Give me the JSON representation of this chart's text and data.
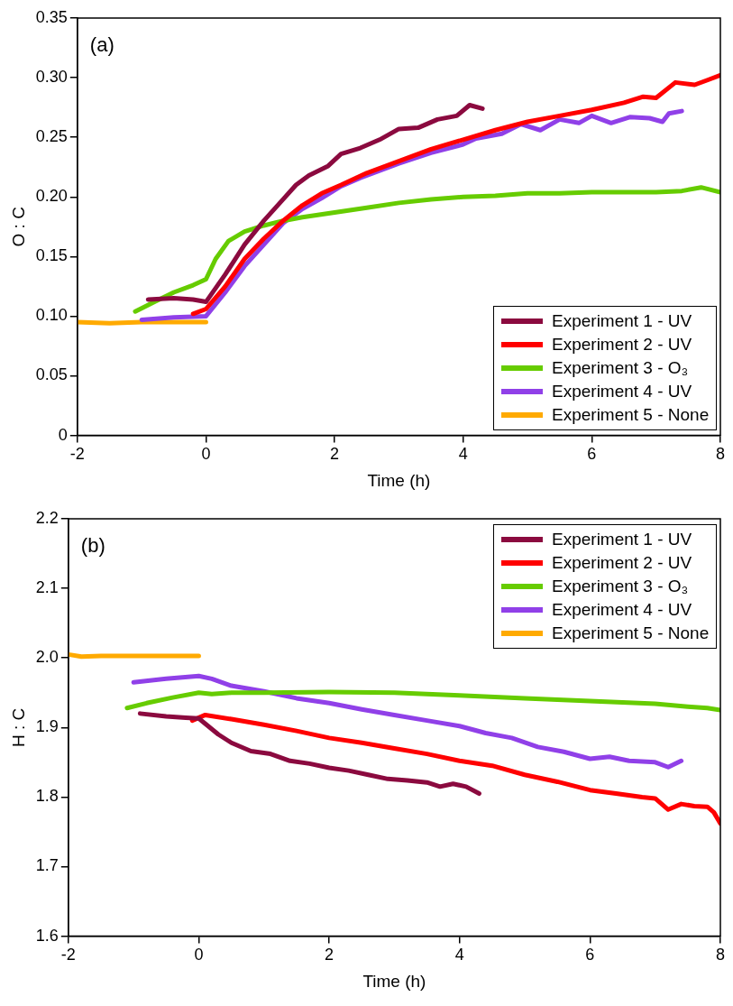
{
  "chart_data": [
    {
      "type": "line",
      "xlabel": "Time (h)",
      "ylabel": "O : C",
      "annotations": [
        "(a)"
      ],
      "legend": "bottom right",
      "grid": false,
      "marker": "none",
      "line_style": "solid",
      "xlim": [
        -2,
        8
      ],
      "xticks": [
        -2,
        0,
        2,
        4,
        6,
        8
      ],
      "ylim": [
        0,
        0.35
      ],
      "yticks": [
        0,
        0.05,
        {
          "value": 0.1,
          "label": "0.10"
        },
        0.15,
        {
          "value": 0.2,
          "label": "0.20"
        },
        0.25,
        {
          "value": 0.3,
          "label": "0.30"
        },
        0.35
      ],
      "series": [
        {
          "name": "Experiment 1 - UV",
          "color": "#8b0a3f",
          "x": [
            -0.9,
            -0.5,
            -0.2,
            0,
            0.3,
            0.6,
            0.9,
            1.2,
            1.4,
            1.6,
            1.9,
            2.1,
            2.4,
            2.7,
            3.0,
            3.3,
            3.6,
            3.9,
            4.1,
            4.3
          ],
          "values": [
            0.114,
            0.115,
            0.114,
            0.112,
            0.135,
            0.16,
            0.18,
            0.198,
            0.21,
            0.218,
            0.226,
            0.236,
            0.241,
            0.248,
            0.257,
            0.258,
            0.265,
            0.268,
            0.277,
            0.274
          ]
        },
        {
          "name": "Experiment 2 - UV",
          "color": "#ff0000",
          "x": [
            -0.2,
            0,
            0.3,
            0.6,
            0.9,
            1.2,
            1.5,
            1.8,
            2.1,
            2.5,
            3.0,
            3.5,
            4.0,
            4.5,
            5.0,
            5.5,
            6.0,
            6.5,
            6.8,
            7.0,
            7.3,
            7.6,
            7.8,
            8.0
          ],
          "values": [
            0.102,
            0.106,
            0.125,
            0.148,
            0.165,
            0.18,
            0.193,
            0.203,
            0.21,
            0.22,
            0.23,
            0.24,
            0.248,
            0.256,
            0.263,
            0.268,
            0.273,
            0.279,
            0.284,
            0.283,
            0.296,
            0.294,
            0.298,
            0.302
          ]
        },
        {
          "name": "Experiment 3 - O₃",
          "color": "#66cc00",
          "x": [
            -1.1,
            -0.8,
            -0.5,
            -0.2,
            0,
            0.15,
            0.35,
            0.6,
            0.9,
            1.2,
            1.5,
            2.0,
            2.5,
            3.0,
            3.5,
            4.0,
            4.5,
            5.0,
            5.5,
            6.0,
            6.5,
            7.0,
            7.4,
            7.7,
            8.0
          ],
          "values": [
            0.104,
            0.112,
            0.12,
            0.126,
            0.131,
            0.148,
            0.163,
            0.171,
            0.176,
            0.18,
            0.183,
            0.187,
            0.191,
            0.195,
            0.198,
            0.2,
            0.201,
            0.203,
            0.203,
            0.204,
            0.204,
            0.204,
            0.205,
            0.208,
            0.204
          ]
        },
        {
          "name": "Experiment 4 - UV",
          "color": "#9040e8",
          "x": [
            -1.0,
            -0.5,
            0,
            0.3,
            0.6,
            0.9,
            1.2,
            1.5,
            1.8,
            2.1,
            2.4,
            2.7,
            3.0,
            3.5,
            4.0,
            4.2,
            4.6,
            4.9,
            5.2,
            5.5,
            5.8,
            6.0,
            6.3,
            6.6,
            6.9,
            7.1,
            7.2,
            7.4
          ],
          "values": [
            0.097,
            0.099,
            0.1,
            0.12,
            0.142,
            0.16,
            0.178,
            0.19,
            0.199,
            0.209,
            0.216,
            0.222,
            0.228,
            0.237,
            0.244,
            0.249,
            0.253,
            0.261,
            0.256,
            0.265,
            0.262,
            0.268,
            0.262,
            0.267,
            0.266,
            0.263,
            0.27,
            0.272
          ]
        },
        {
          "name": "Experiment 5 - None",
          "color": "#ffaa00",
          "x": [
            -2,
            -1.5,
            -1,
            -0.5,
            0
          ],
          "values": [
            0.095,
            0.094,
            0.095,
            0.095,
            0.095
          ]
        }
      ]
    },
    {
      "type": "line",
      "xlabel": "Time (h)",
      "ylabel": "H : C",
      "annotations": [
        "(b)"
      ],
      "legend": "top right",
      "grid": false,
      "marker": "none",
      "line_style": "solid",
      "xlim": [
        -2,
        8
      ],
      "xticks": [
        -2,
        0,
        2,
        4,
        6,
        8
      ],
      "ylim": [
        1.6,
        2.2
      ],
      "yticks": [
        1.6,
        1.7,
        1.8,
        1.9,
        {
          "value": 2,
          "label": "2.0"
        },
        2.1,
        2.2
      ],
      "series": [
        {
          "name": "Experiment 1 - UV",
          "color": "#8b0a3f",
          "x": [
            -0.9,
            -0.5,
            -0.2,
            0,
            0.3,
            0.5,
            0.8,
            1.1,
            1.4,
            1.7,
            2.0,
            2.3,
            2.6,
            2.9,
            3.2,
            3.5,
            3.7,
            3.9,
            4.1,
            4.3
          ],
          "values": [
            1.92,
            1.916,
            1.914,
            1.913,
            1.89,
            1.878,
            1.866,
            1.862,
            1.852,
            1.848,
            1.842,
            1.838,
            1.832,
            1.826,
            1.824,
            1.821,
            1.815,
            1.819,
            1.815,
            1.805
          ]
        },
        {
          "name": "Experiment 2 - UV",
          "color": "#ff0000",
          "x": [
            -0.1,
            0.1,
            0.5,
            1.0,
            1.5,
            2.0,
            2.5,
            3.0,
            3.5,
            4.0,
            4.5,
            5.0,
            5.5,
            6.0,
            6.4,
            6.8,
            7.0,
            7.2,
            7.4,
            7.6,
            7.8,
            7.9,
            8.0
          ],
          "values": [
            1.91,
            1.918,
            1.912,
            1.904,
            1.895,
            1.885,
            1.878,
            1.87,
            1.862,
            1.852,
            1.845,
            1.832,
            1.822,
            1.81,
            1.805,
            1.8,
            1.798,
            1.782,
            1.79,
            1.787,
            1.786,
            1.778,
            1.762
          ]
        },
        {
          "name": "Experiment 3 - O₃",
          "color": "#66cc00",
          "x": [
            -1.1,
            -0.8,
            -0.4,
            0,
            0.2,
            0.5,
            1,
            2,
            3,
            4,
            5,
            6,
            7,
            7.5,
            7.8,
            8
          ],
          "values": [
            1.928,
            1.935,
            1.943,
            1.95,
            1.948,
            1.95,
            1.95,
            1.951,
            1.95,
            1.946,
            1.942,
            1.938,
            1.934,
            1.93,
            1.928,
            1.925
          ]
        },
        {
          "name": "Experiment 4 - UV",
          "color": "#9040e8",
          "x": [
            -1.0,
            -0.5,
            0,
            0.2,
            0.5,
            1.0,
            1.5,
            2.0,
            2.5,
            3.0,
            3.5,
            4.0,
            4.4,
            4.8,
            5.2,
            5.6,
            6.0,
            6.3,
            6.6,
            7.0,
            7.2,
            7.4
          ],
          "values": [
            1.965,
            1.97,
            1.974,
            1.97,
            1.96,
            1.952,
            1.942,
            1.935,
            1.926,
            1.918,
            1.91,
            1.902,
            1.892,
            1.885,
            1.872,
            1.865,
            1.855,
            1.858,
            1.852,
            1.85,
            1.843,
            1.852
          ]
        },
        {
          "name": "Experiment 5 - None",
          "color": "#ffaa00",
          "x": [
            -2,
            -1.8,
            -1.5,
            -1,
            -0.5,
            0
          ],
          "values": [
            2.005,
            2.002,
            2.003,
            2.003,
            2.003,
            2.003
          ]
        }
      ]
    }
  ]
}
